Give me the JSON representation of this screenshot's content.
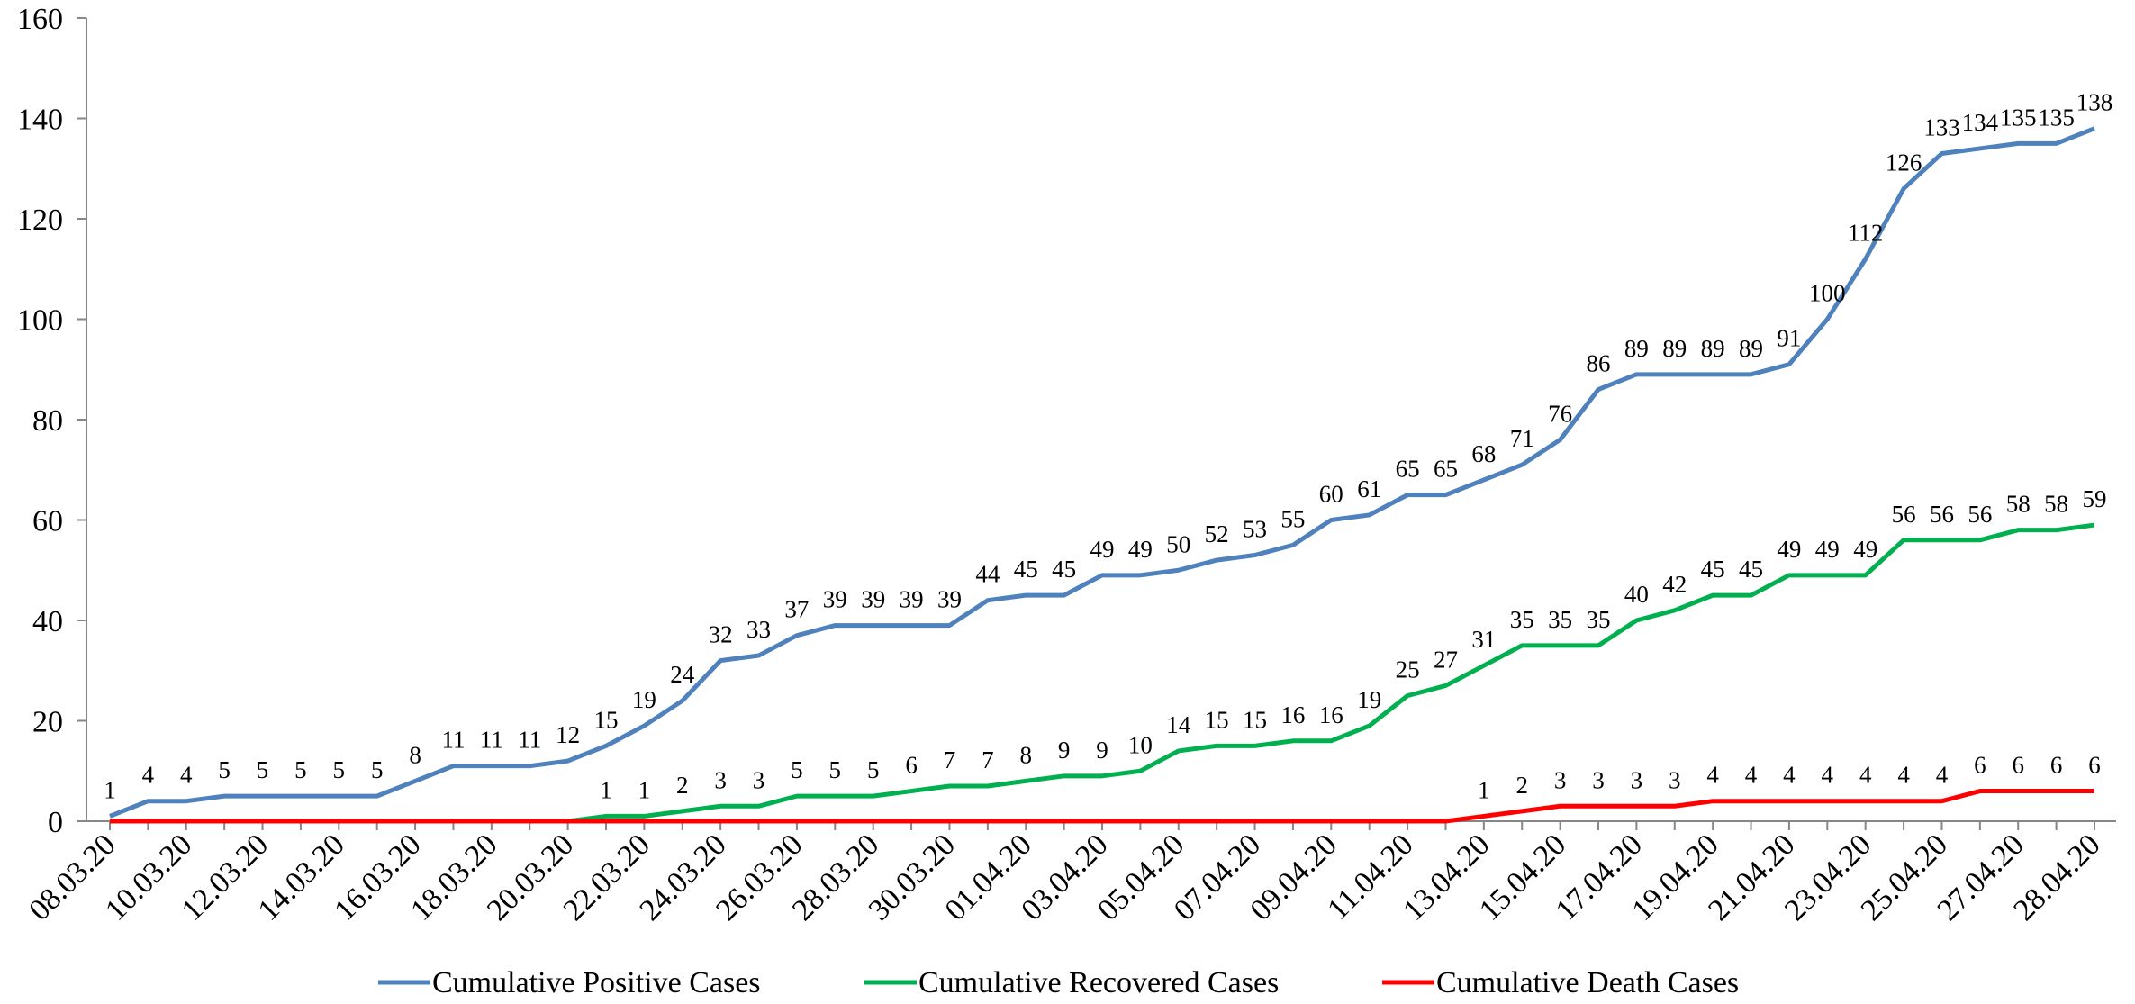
{
  "chart_data": {
    "type": "line",
    "categories": [
      "08.03.20",
      null,
      "10.03.20",
      null,
      "12.03.20",
      null,
      "14.03.20",
      null,
      "16.03.20",
      null,
      "18.03.20",
      null,
      "20.03.20",
      null,
      "22.03.20",
      null,
      "24.03.20",
      null,
      "26.03.20",
      null,
      "28.03.20",
      null,
      "30.03.20",
      null,
      "01.04.20",
      null,
      "03.04.20",
      null,
      "05.04.20",
      null,
      "07.04.20",
      null,
      "09.04.20",
      null,
      "11.04.20",
      null,
      "13.04.20",
      null,
      "15.04.20",
      null,
      "17.04.20",
      null,
      "19.04.20",
      null,
      "21.04.20",
      null,
      "23.04.20",
      null,
      "25.04.20",
      null,
      "27.04.20",
      null,
      "28.04.20"
    ],
    "series": [
      {
        "name": "Cumulative Positive Cases",
        "color": "#4f81bd",
        "values": [
          1,
          4,
          4,
          5,
          5,
          5,
          5,
          5,
          8,
          11,
          11,
          11,
          12,
          15,
          19,
          24,
          32,
          33,
          37,
          39,
          39,
          39,
          39,
          44,
          45,
          45,
          49,
          49,
          50,
          52,
          53,
          55,
          60,
          61,
          65,
          65,
          68,
          71,
          76,
          86,
          89,
          89,
          89,
          89,
          91,
          100,
          112,
          126,
          133,
          134,
          135,
          135,
          138
        ]
      },
      {
        "name": "Cumulative Recovered Cases",
        "color": "#00b050",
        "values": [
          0,
          0,
          0,
          0,
          0,
          0,
          0,
          0,
          0,
          0,
          0,
          0,
          0,
          1,
          1,
          2,
          3,
          3,
          5,
          5,
          5,
          6,
          7,
          7,
          8,
          9,
          9,
          10,
          14,
          15,
          15,
          16,
          16,
          19,
          25,
          27,
          31,
          35,
          35,
          35,
          40,
          42,
          45,
          45,
          49,
          49,
          49,
          56,
          56,
          56,
          58,
          58,
          59
        ],
        "value_labels": [
          null,
          null,
          null,
          null,
          null,
          null,
          null,
          null,
          null,
          null,
          null,
          null,
          null,
          "1",
          "1",
          "2",
          "3",
          "3",
          "5",
          "5",
          "5",
          "6",
          "7",
          "7",
          "8",
          "9",
          "9",
          "10",
          "14",
          "15",
          "15",
          "16",
          "16",
          "19",
          "25",
          "27",
          "31",
          "35",
          "35",
          "35",
          "40",
          "42",
          "45",
          "45",
          "49",
          "49",
          "49",
          "56",
          "56",
          "56",
          "58",
          "58",
          "59"
        ]
      },
      {
        "name": "Cumulative Death Cases",
        "color": "#ff0000",
        "values": [
          0,
          0,
          0,
          0,
          0,
          0,
          0,
          0,
          0,
          0,
          0,
          0,
          0,
          0,
          0,
          0,
          0,
          0,
          0,
          0,
          0,
          0,
          0,
          0,
          0,
          0,
          0,
          0,
          0,
          0,
          0,
          0,
          0,
          0,
          0,
          0,
          1,
          2,
          3,
          3,
          3,
          3,
          4,
          4,
          4,
          4,
          4,
          4,
          4,
          6,
          6,
          6,
          6
        ],
        "value_labels": [
          null,
          null,
          null,
          null,
          null,
          null,
          null,
          null,
          null,
          null,
          null,
          null,
          null,
          null,
          null,
          null,
          null,
          null,
          null,
          null,
          null,
          null,
          null,
          null,
          null,
          null,
          null,
          null,
          null,
          null,
          null,
          null,
          null,
          null,
          null,
          null,
          "1",
          "2",
          "3",
          "3",
          "3",
          "3",
          "4",
          "4",
          "4",
          "4",
          "4",
          "4",
          "4",
          "6",
          "6",
          "6",
          "6"
        ]
      }
    ],
    "ylim": [
      0,
      160
    ],
    "yticks": [
      0,
      20,
      40,
      60,
      80,
      100,
      120,
      140,
      160
    ],
    "legend": "bottom"
  }
}
